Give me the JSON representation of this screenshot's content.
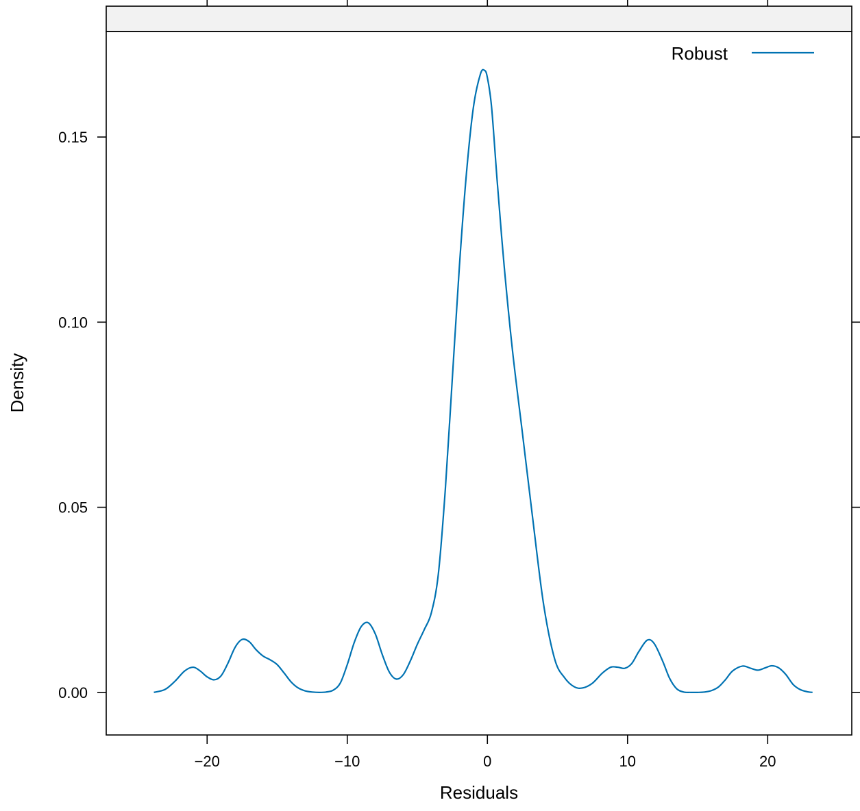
{
  "chart_data": {
    "type": "line",
    "title": "",
    "xlabel": "Residuals",
    "ylabel": "Density",
    "xlim": [
      -27.2,
      26.0
    ],
    "ylim": [
      -0.0115,
      0.1785
    ],
    "xticks": [
      -20,
      -10,
      0,
      10,
      20
    ],
    "xtick_labels": [
      "−20",
      "−10",
      "0",
      "10",
      "20"
    ],
    "yticks": [
      0.0,
      0.05,
      0.1,
      0.15
    ],
    "ytick_labels": [
      "0.00",
      "0.05",
      "0.10",
      "0.15"
    ],
    "grid": false,
    "strip": true,
    "legend": {
      "position": "top-right",
      "entries": [
        "Robust"
      ]
    },
    "series": [
      {
        "name": "Robust",
        "color": "#0072B2",
        "x": [
          -23.8,
          -23.0,
          -22.3,
          -21.6,
          -21.0,
          -20.5,
          -20.0,
          -19.5,
          -19.0,
          -18.5,
          -18.0,
          -17.5,
          -17.0,
          -16.5,
          -16.0,
          -15.5,
          -15.0,
          -14.5,
          -14.0,
          -13.5,
          -13.0,
          -12.5,
          -12.0,
          -11.5,
          -11.0,
          -10.5,
          -10.0,
          -9.5,
          -9.0,
          -8.5,
          -8.0,
          -7.5,
          -7.0,
          -6.5,
          -6.0,
          -5.5,
          -5.0,
          -4.5,
          -4.0,
          -3.5,
          -3.0,
          -2.5,
          -2.0,
          -1.5,
          -1.0,
          -0.5,
          -0.2,
          0.0,
          0.3,
          0.7,
          1.2,
          1.8,
          2.5,
          3.2,
          4.0,
          4.8,
          5.5,
          6.2,
          6.8,
          7.5,
          8.2,
          8.8,
          9.3,
          9.8,
          10.3,
          10.8,
          11.4,
          11.9,
          12.5,
          13.0,
          13.5,
          14.0,
          14.5,
          15.0,
          15.5,
          16.0,
          16.5,
          17.0,
          17.5,
          18.2,
          18.8,
          19.3,
          19.8,
          20.3,
          20.8,
          21.3,
          21.8,
          22.3,
          22.8,
          23.2
        ],
        "y": [
          0.0,
          0.0008,
          0.003,
          0.0058,
          0.0068,
          0.0058,
          0.0042,
          0.0034,
          0.0045,
          0.008,
          0.0122,
          0.0143,
          0.0137,
          0.0115,
          0.0098,
          0.0088,
          0.0075,
          0.0052,
          0.0028,
          0.0012,
          0.0004,
          0.0001,
          0.0,
          0.0001,
          0.0006,
          0.0025,
          0.0075,
          0.0135,
          0.0178,
          0.0188,
          0.0158,
          0.0102,
          0.0055,
          0.0036,
          0.0048,
          0.0085,
          0.013,
          0.017,
          0.0215,
          0.032,
          0.055,
          0.085,
          0.115,
          0.14,
          0.158,
          0.167,
          0.168,
          0.166,
          0.158,
          0.138,
          0.115,
          0.092,
          0.07,
          0.048,
          0.024,
          0.009,
          0.004,
          0.0015,
          0.0012,
          0.0025,
          0.0052,
          0.0068,
          0.0068,
          0.0065,
          0.0078,
          0.011,
          0.0141,
          0.0132,
          0.0085,
          0.0038,
          0.001,
          0.0001,
          0.0,
          0.0,
          0.0001,
          0.0005,
          0.0015,
          0.0035,
          0.0058,
          0.0071,
          0.0065,
          0.006,
          0.0066,
          0.0072,
          0.0066,
          0.0048,
          0.0022,
          0.0008,
          0.0002,
          0.0
        ]
      }
    ]
  }
}
